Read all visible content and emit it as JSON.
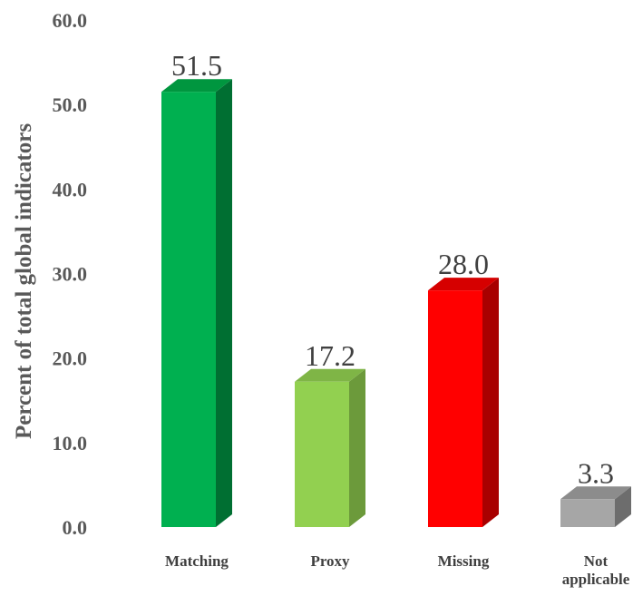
{
  "chart_data": {
    "type": "bar",
    "style": "3d-column",
    "categories": [
      "Matching",
      "Proxy",
      "Missing",
      "Not applicable"
    ],
    "category_lines": [
      [
        "Matching"
      ],
      [
        "Proxy"
      ],
      [
        "Missing"
      ],
      [
        "Not",
        "applicable"
      ]
    ],
    "values": [
      51.5,
      17.2,
      28.0,
      3.3
    ],
    "value_labels": [
      "51.5",
      "17.2",
      "28.0",
      "3.3"
    ],
    "ylabel": "Percent of total global indicators",
    "xlabel": "",
    "ylim": [
      0,
      60
    ],
    "yticks": [
      "0.0",
      "10.0",
      "20.0",
      "30.0",
      "40.0",
      "50.0",
      "60.0"
    ],
    "grid": false,
    "legend": "none",
    "colors": [
      {
        "front": "#00b050",
        "side": "#006f32",
        "top": "#00963f"
      },
      {
        "front": "#92d050",
        "side": "#6c9a3b",
        "top": "#7fb546"
      },
      {
        "front": "#ff0000",
        "side": "#a80000",
        "top": "#d60000"
      },
      {
        "front": "#a6a6a6",
        "side": "#6d6d6d",
        "top": "#8c8c8c"
      }
    ]
  }
}
